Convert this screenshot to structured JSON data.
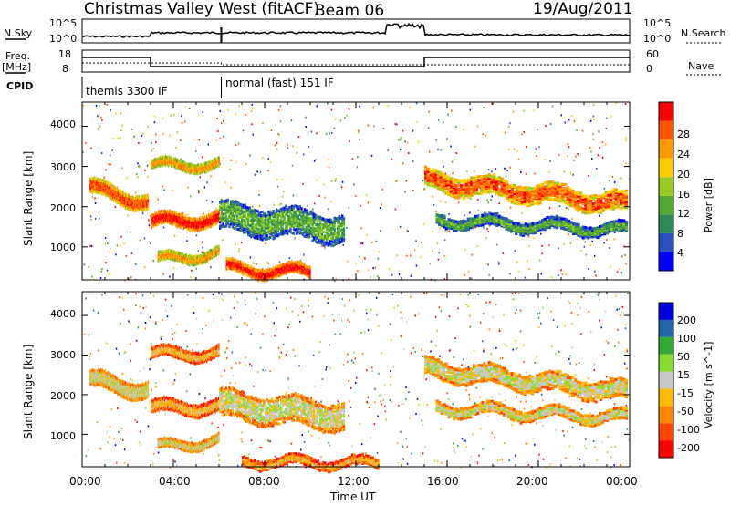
{
  "header": {
    "station": "Christmas Valley West (fitACF)",
    "beam": "Beam 06",
    "date": "19/Aug/2011"
  },
  "top_panels": {
    "nsky_label": "N.Sky",
    "nsearch_label": "N.Search",
    "noise_ticks": [
      "10^5",
      "10^0"
    ],
    "freq_label": "Freq.",
    "freq_unit": "[MHz]",
    "freq_ticks": [
      "18",
      "8"
    ],
    "nave_label": "Nave",
    "nave_ticks": [
      "60",
      "0"
    ],
    "cpid_label": "CPID",
    "cpid_segments": [
      {
        "label": "themis 3300 IF",
        "start_hour": 0,
        "end_hour": 6.1
      },
      {
        "label": "normal (fast) 151 IF",
        "start_hour": 6.1,
        "end_hour": 24
      }
    ]
  },
  "colors": {
    "power_scale": [
      "#0000ff",
      "#2a52be",
      "#2e8b57",
      "#55aa33",
      "#99cc22",
      "#ffcc00",
      "#ff9900",
      "#ff5500",
      "#ff0000"
    ],
    "velocity_scale": [
      "#ff0000",
      "#ff4400",
      "#ff8800",
      "#ffbb00",
      "#c8c8c8",
      "#88dd33",
      "#33aa33",
      "#2266aa",
      "#0000dd"
    ]
  },
  "chart_data": [
    {
      "type": "heatmap",
      "panel": "power",
      "xlabel": "",
      "ylabel": "Slant Range [km]",
      "x_ticks": [
        "00:00",
        "04:00",
        "08:00",
        "12:00",
        "16:00",
        "20:00",
        "00:00"
      ],
      "y_ticks": [
        "1000",
        "2000",
        "3000",
        "4000"
      ],
      "ylim": [
        180,
        4600
      ],
      "xlim_hours": [
        0,
        24
      ],
      "colorbar_label": "Power [dB]",
      "colorbar_ticks": [
        "28",
        "24",
        "20",
        "16",
        "12",
        "8",
        "4"
      ],
      "bands": [
        {
          "t0": 0.3,
          "t1": 2.9,
          "r_center_start": 2500,
          "r_center_end": 2150,
          "width": 350,
          "level": 7
        },
        {
          "t0": 3.0,
          "t1": 6.0,
          "r_center_start": 1650,
          "r_center_end": 1750,
          "width": 300,
          "level": 8
        },
        {
          "t0": 3.0,
          "t1": 6.0,
          "r_center_start": 3050,
          "r_center_end": 3100,
          "width": 200,
          "level": 6
        },
        {
          "t0": 3.3,
          "t1": 6.0,
          "r_center_start": 700,
          "r_center_end": 900,
          "width": 200,
          "level": 6
        },
        {
          "t0": 6.0,
          "t1": 11.5,
          "r_center_start": 1800,
          "r_center_end": 1500,
          "width": 700,
          "level": 3
        },
        {
          "t0": 6.3,
          "t1": 10.0,
          "r_center_start": 500,
          "r_center_end": 400,
          "width": 250,
          "level": 8
        },
        {
          "t0": 15.0,
          "t1": 23.9,
          "r_center_start": 2700,
          "r_center_end": 2100,
          "width": 450,
          "level": 7
        },
        {
          "t0": 15.5,
          "t1": 23.9,
          "r_center_start": 1700,
          "r_center_end": 1450,
          "width": 250,
          "level": 3
        }
      ]
    },
    {
      "type": "heatmap",
      "panel": "velocity",
      "xlabel": "Time UT",
      "ylabel": "Slant Range [km]",
      "x_ticks": [
        "00:00",
        "04:00",
        "08:00",
        "12:00",
        "16:00",
        "20:00",
        "00:00"
      ],
      "y_ticks": [
        "1000",
        "2000",
        "3000",
        "4000"
      ],
      "ylim": [
        180,
        4600
      ],
      "xlim_hours": [
        0,
        24
      ],
      "colorbar_label": "Velocity [m s^-1]",
      "colorbar_ticks": [
        "200",
        "100",
        "50",
        "15",
        "-15",
        "-50",
        "-100",
        "-200"
      ],
      "bands": [
        {
          "t0": 0.3,
          "t1": 2.9,
          "r_center_start": 2400,
          "r_center_end": 2150,
          "width": 400,
          "level": 4
        },
        {
          "t0": 3.0,
          "t1": 6.0,
          "r_center_start": 1700,
          "r_center_end": 1750,
          "width": 300,
          "level": 3
        },
        {
          "t0": 3.0,
          "t1": 6.0,
          "r_center_start": 3050,
          "r_center_end": 3100,
          "width": 250,
          "level": 3
        },
        {
          "t0": 3.3,
          "t1": 6.0,
          "r_center_start": 700,
          "r_center_end": 900,
          "width": 200,
          "level": 4
        },
        {
          "t0": 6.0,
          "t1": 11.5,
          "r_center_start": 1800,
          "r_center_end": 1500,
          "width": 700,
          "level": 4
        },
        {
          "t0": 7.0,
          "t1": 13.0,
          "r_center_start": 350,
          "r_center_end": 300,
          "width": 200,
          "level": 3
        },
        {
          "t0": 15.0,
          "t1": 23.9,
          "r_center_start": 2700,
          "r_center_end": 2100,
          "width": 450,
          "level": 4
        },
        {
          "t0": 15.5,
          "t1": 23.9,
          "r_center_start": 1700,
          "r_center_end": 1450,
          "width": 250,
          "level": 4
        }
      ]
    }
  ]
}
